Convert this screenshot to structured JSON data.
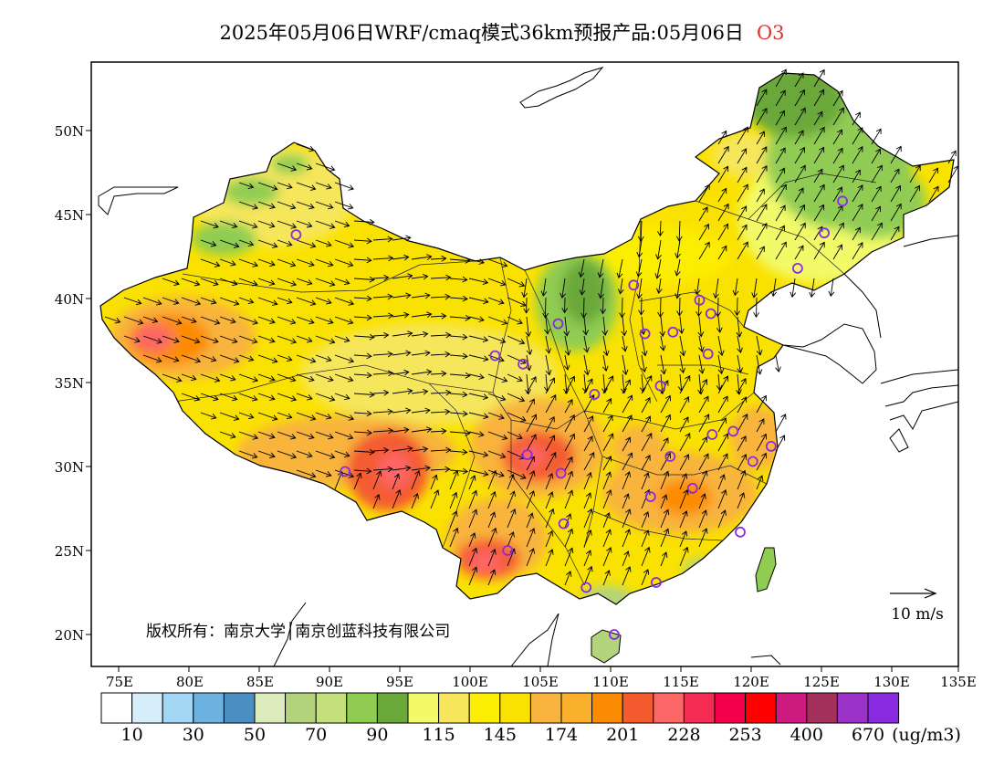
{
  "title": {
    "text": "2025年05月06日WRF/cmaq模式36km预报产品:05月06日",
    "species": "O3",
    "species_color": "#e03030"
  },
  "axes": {
    "lat_labels": [
      "50N",
      "45N",
      "40N",
      "35N",
      "30N",
      "25N",
      "20N"
    ],
    "lon_labels": [
      "75E",
      "80E",
      "85E",
      "90E",
      "95E",
      "100E",
      "105E",
      "110E",
      "115E",
      "120E",
      "125E",
      "130E",
      "135E"
    ]
  },
  "copyright": "版权所有：南京大学│南京创蓝科技有限公司",
  "wind_scale": {
    "label": "10 m/s"
  },
  "colorbar": {
    "colors": [
      "#ffffff",
      "#d6eefa",
      "#a2d6f2",
      "#6cb2e0",
      "#4a8fc2",
      "#dcebbb",
      "#b4d47c",
      "#c4e07c",
      "#90cc52",
      "#6aa83a",
      "#f2fa6a",
      "#f6e65c",
      "#fcee02",
      "#fae200",
      "#f8b43e",
      "#fab02c",
      "#fd8c02",
      "#f45c30",
      "#fd6666",
      "#f42c54",
      "#f2004c",
      "#fe0000",
      "#cc1a7e",
      "#a4305c",
      "#9a32c8",
      "#8a2be2"
    ],
    "labels": [
      "10",
      "30",
      "50",
      "70",
      "90",
      "115",
      "145",
      "174",
      "201",
      "228",
      "253",
      "400",
      "670"
    ],
    "unit": "(ug/m3)"
  },
  "cities": [
    [
      87.6,
      43.8
    ],
    [
      91.1,
      29.7
    ],
    [
      101.8,
      36.6
    ],
    [
      103.8,
      36.1
    ],
    [
      106.3,
      38.5
    ],
    [
      111.7,
      40.8
    ],
    [
      112.5,
      37.9
    ],
    [
      114.5,
      38.0
    ],
    [
      116.4,
      39.9
    ],
    [
      117.2,
      39.1
    ],
    [
      117.0,
      36.7
    ],
    [
      113.6,
      34.8
    ],
    [
      108.9,
      34.3
    ],
    [
      106.5,
      29.6
    ],
    [
      104.1,
      30.7
    ],
    [
      106.7,
      26.6
    ],
    [
      102.7,
      25.0
    ],
    [
      108.3,
      22.8
    ],
    [
      110.3,
      20.0
    ],
    [
      113.3,
      23.1
    ],
    [
      112.9,
      28.2
    ],
    [
      114.3,
      30.6
    ],
    [
      115.9,
      28.7
    ],
    [
      117.3,
      31.9
    ],
    [
      118.8,
      32.1
    ],
    [
      120.2,
      30.3
    ],
    [
      121.5,
      31.2
    ],
    [
      119.3,
      26.1
    ],
    [
      123.4,
      41.8
    ],
    [
      125.3,
      43.9
    ],
    [
      126.6,
      45.8
    ]
  ]
}
